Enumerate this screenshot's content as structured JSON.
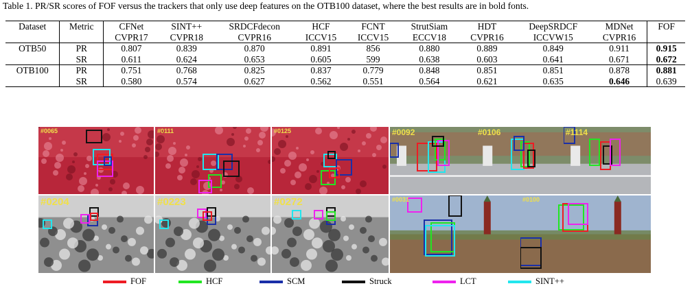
{
  "caption": "Table 1. PR/SR scores of FOF versus the trackers that only use deep features on the OTB100 dataset, where the best results are in bold fonts.",
  "table": {
    "headers": [
      {
        "line1": "Dataset",
        "line2": ""
      },
      {
        "line1": "Metric",
        "line2": ""
      },
      {
        "line1": "CFNet",
        "line2": "CVPR17"
      },
      {
        "line1": "SINT++",
        "line2": "CVPR18"
      },
      {
        "line1": "SRDCFdecon",
        "line2": "CVPR16"
      },
      {
        "line1": "HCF",
        "line2": "ICCV15"
      },
      {
        "line1": "FCNT",
        "line2": "ICCV15"
      },
      {
        "line1": "StrutSiam",
        "line2": "ECCV18"
      },
      {
        "line1": "HDT",
        "line2": "CVPR16"
      },
      {
        "line1": "DeepSRDCF",
        "line2": "ICCVW15"
      },
      {
        "line1": "MDNet",
        "line2": "CVPR16"
      },
      {
        "line1": "FOF",
        "line2": ""
      }
    ],
    "rows": [
      {
        "dataset": "OTB50",
        "metric": "PR",
        "values": [
          "0.807",
          "0.839",
          "0.870",
          "0.891",
          "856",
          "0.880",
          "0.889",
          "0.849",
          "0.911",
          "0.915"
        ],
        "bold": [
          false,
          false,
          false,
          false,
          false,
          false,
          false,
          false,
          false,
          true
        ]
      },
      {
        "dataset": "",
        "metric": "SR",
        "values": [
          "0.611",
          "0.624",
          "0.653",
          "0.605",
          "599",
          "0.638",
          "0.603",
          "0.641",
          "0.671",
          "0.672"
        ],
        "bold": [
          false,
          false,
          false,
          false,
          false,
          false,
          false,
          false,
          false,
          true
        ]
      },
      {
        "dataset": "OTB100",
        "metric": "PR",
        "values": [
          "0.751",
          "0.768",
          "0.825",
          "0.837",
          "0.779",
          "0.848",
          "0.851",
          "0.851",
          "0.878",
          "0.881"
        ],
        "bold": [
          false,
          false,
          false,
          false,
          false,
          false,
          false,
          false,
          false,
          true
        ]
      },
      {
        "dataset": "",
        "metric": "SR",
        "values": [
          "0.580",
          "0.574",
          "0.627",
          "0.562",
          "0.551",
          "0.564",
          "0.621",
          "0.635",
          "0.646",
          "0.639"
        ],
        "bold": [
          false,
          false,
          false,
          false,
          false,
          false,
          false,
          false,
          true,
          false
        ]
      }
    ]
  },
  "frames": [
    {
      "label": "#0065",
      "scene": "red"
    },
    {
      "label": "#0111",
      "scene": "red"
    },
    {
      "label": "#0125",
      "scene": "red"
    },
    {
      "label": "#0092",
      "scene": "street"
    },
    {
      "label": "#0106",
      "scene": "street"
    },
    {
      "label": "#1114",
      "scene": "street"
    },
    {
      "label": "#0204",
      "scene": "gray"
    },
    {
      "label": "#0223",
      "scene": "gray"
    },
    {
      "label": "#0272",
      "scene": "gray"
    },
    {
      "label": "#0031",
      "scene": "moto"
    },
    {
      "label": "#0100",
      "scene": "moto"
    }
  ],
  "legend": [
    {
      "label": "FOF",
      "color": "#ee1c24"
    },
    {
      "label": "HCF",
      "color": "#22e622"
    },
    {
      "label": "SCM",
      "color": "#1a2fa8"
    },
    {
      "label": "Struck",
      "color": "#111111"
    },
    {
      "label": "LCT",
      "color": "#ee22ee"
    },
    {
      "label": "SINT++",
      "color": "#22e6ee"
    }
  ]
}
